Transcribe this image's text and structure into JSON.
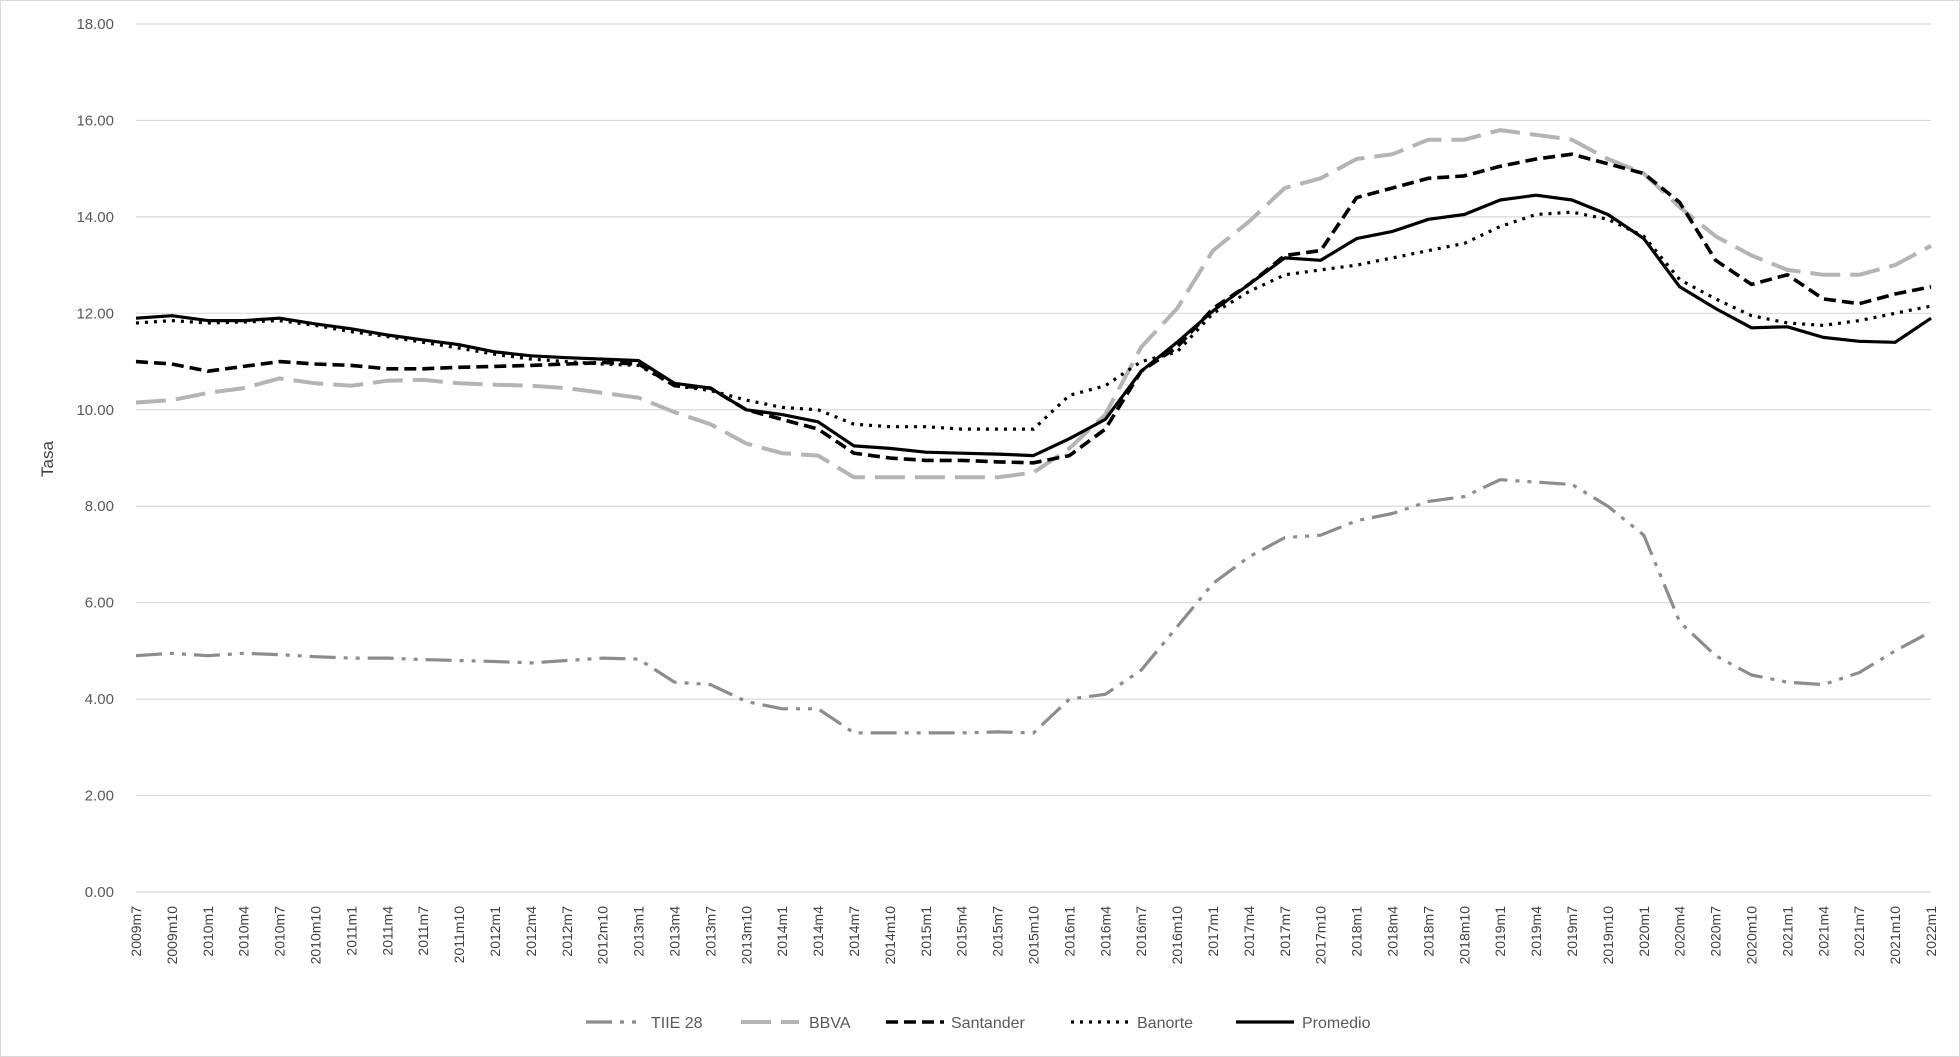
{
  "chart_data": {
    "type": "line",
    "title": "",
    "xlabel": "",
    "ylabel": "Tasa",
    "ylim": [
      0,
      18
    ],
    "yticks": [
      "0.00",
      "2.00",
      "4.00",
      "6.00",
      "8.00",
      "10.00",
      "12.00",
      "14.00",
      "16.00",
      "18.00"
    ],
    "grid": true,
    "legend_position": "bottom",
    "x": [
      "2009m7",
      "2009m10",
      "2010m1",
      "2010m4",
      "2010m7",
      "2010m10",
      "2011m1",
      "2011m4",
      "2011m7",
      "2011m10",
      "2012m1",
      "2012m4",
      "2012m7",
      "2012m10",
      "2013m1",
      "2013m4",
      "2013m7",
      "2013m10",
      "2014m1",
      "2014m4",
      "2014m7",
      "2014m10",
      "2015m1",
      "2015m4",
      "2015m7",
      "2015m10",
      "2016m1",
      "2016m4",
      "2016m7",
      "2016m10",
      "2017m1",
      "2017m4",
      "2017m7",
      "2017m10",
      "2018m1",
      "2018m4",
      "2018m7",
      "2018m10",
      "2019m1",
      "2019m4",
      "2019m7",
      "2019m10",
      "2020m1",
      "2020m4",
      "2020m7",
      "2020m10",
      "2021m1",
      "2021m4",
      "2021m7",
      "2021m10",
      "2022m1"
    ],
    "series": [
      {
        "name": "TIIE 28",
        "color": "#8c8c8c",
        "style": "dashdotdot",
        "values": [
          4.9,
          4.95,
          4.9,
          4.95,
          4.92,
          4.88,
          4.85,
          4.85,
          4.82,
          4.8,
          4.78,
          4.75,
          4.8,
          4.85,
          4.83,
          4.35,
          4.3,
          3.95,
          3.8,
          3.8,
          3.3,
          3.3,
          3.3,
          3.3,
          3.32,
          3.3,
          4.0,
          4.1,
          4.6,
          5.5,
          6.4,
          6.95,
          7.35,
          7.4,
          7.7,
          7.85,
          8.1,
          8.2,
          8.55,
          8.5,
          8.45,
          8.0,
          7.4,
          5.6,
          4.9,
          4.5,
          4.35,
          4.3,
          4.55,
          5.0,
          5.4
        ]
      },
      {
        "name": "BBVA",
        "color": "#b4b4b4",
        "style": "longdash",
        "values": [
          10.15,
          10.2,
          10.35,
          10.45,
          10.65,
          10.55,
          10.5,
          10.6,
          10.62,
          10.55,
          10.52,
          10.5,
          10.45,
          10.35,
          10.25,
          9.95,
          9.7,
          9.3,
          9.1,
          9.05,
          8.6,
          8.6,
          8.6,
          8.6,
          8.6,
          8.7,
          9.2,
          9.9,
          11.3,
          12.1,
          13.3,
          13.9,
          14.6,
          14.8,
          15.2,
          15.3,
          15.6,
          15.6,
          15.8,
          15.7,
          15.6,
          15.2,
          14.9,
          14.2,
          13.6,
          13.2,
          12.9,
          12.8,
          12.8,
          13.0,
          13.4
        ]
      },
      {
        "name": "Santander",
        "color": "#000000",
        "style": "dash",
        "values": [
          11.0,
          10.95,
          10.8,
          10.9,
          11.0,
          10.95,
          10.92,
          10.85,
          10.85,
          10.88,
          10.9,
          10.92,
          10.95,
          10.98,
          10.95,
          10.5,
          10.45,
          10.0,
          9.8,
          9.6,
          9.1,
          9.0,
          8.95,
          8.95,
          8.92,
          8.9,
          9.05,
          9.6,
          10.8,
          11.3,
          12.1,
          12.6,
          13.2,
          13.3,
          14.4,
          14.6,
          14.8,
          14.85,
          15.05,
          15.2,
          15.3,
          15.1,
          14.9,
          14.3,
          13.1,
          12.6,
          12.8,
          12.3,
          12.2,
          12.4,
          12.55
        ]
      },
      {
        "name": "Banorte",
        "color": "#000000",
        "style": "dot",
        "values": [
          11.8,
          11.85,
          11.8,
          11.82,
          11.85,
          11.75,
          11.62,
          11.52,
          11.4,
          11.28,
          11.15,
          11.05,
          11.0,
          10.95,
          10.92,
          10.5,
          10.4,
          10.2,
          10.05,
          10.0,
          9.7,
          9.65,
          9.65,
          9.6,
          9.6,
          9.6,
          10.3,
          10.5,
          11.0,
          11.2,
          12.0,
          12.45,
          12.8,
          12.9,
          13.0,
          13.15,
          13.3,
          13.45,
          13.8,
          14.05,
          14.1,
          13.95,
          13.6,
          12.7,
          12.3,
          11.95,
          11.8,
          11.75,
          11.85,
          12.0,
          12.15
        ]
      },
      {
        "name": "Promedio",
        "color": "#000000",
        "style": "solid",
        "values": [
          11.9,
          11.95,
          11.85,
          11.85,
          11.9,
          11.78,
          11.68,
          11.55,
          11.45,
          11.35,
          11.2,
          11.12,
          11.08,
          11.05,
          11.02,
          10.55,
          10.45,
          10.0,
          9.9,
          9.75,
          9.25,
          9.2,
          9.12,
          9.1,
          9.08,
          9.05,
          9.4,
          9.8,
          10.8,
          11.4,
          12.05,
          12.6,
          13.15,
          13.1,
          13.55,
          13.7,
          13.95,
          14.05,
          14.35,
          14.45,
          14.35,
          14.05,
          13.55,
          12.55,
          12.1,
          11.7,
          11.72,
          11.5,
          11.42,
          11.4,
          11.9
        ]
      }
    ]
  }
}
